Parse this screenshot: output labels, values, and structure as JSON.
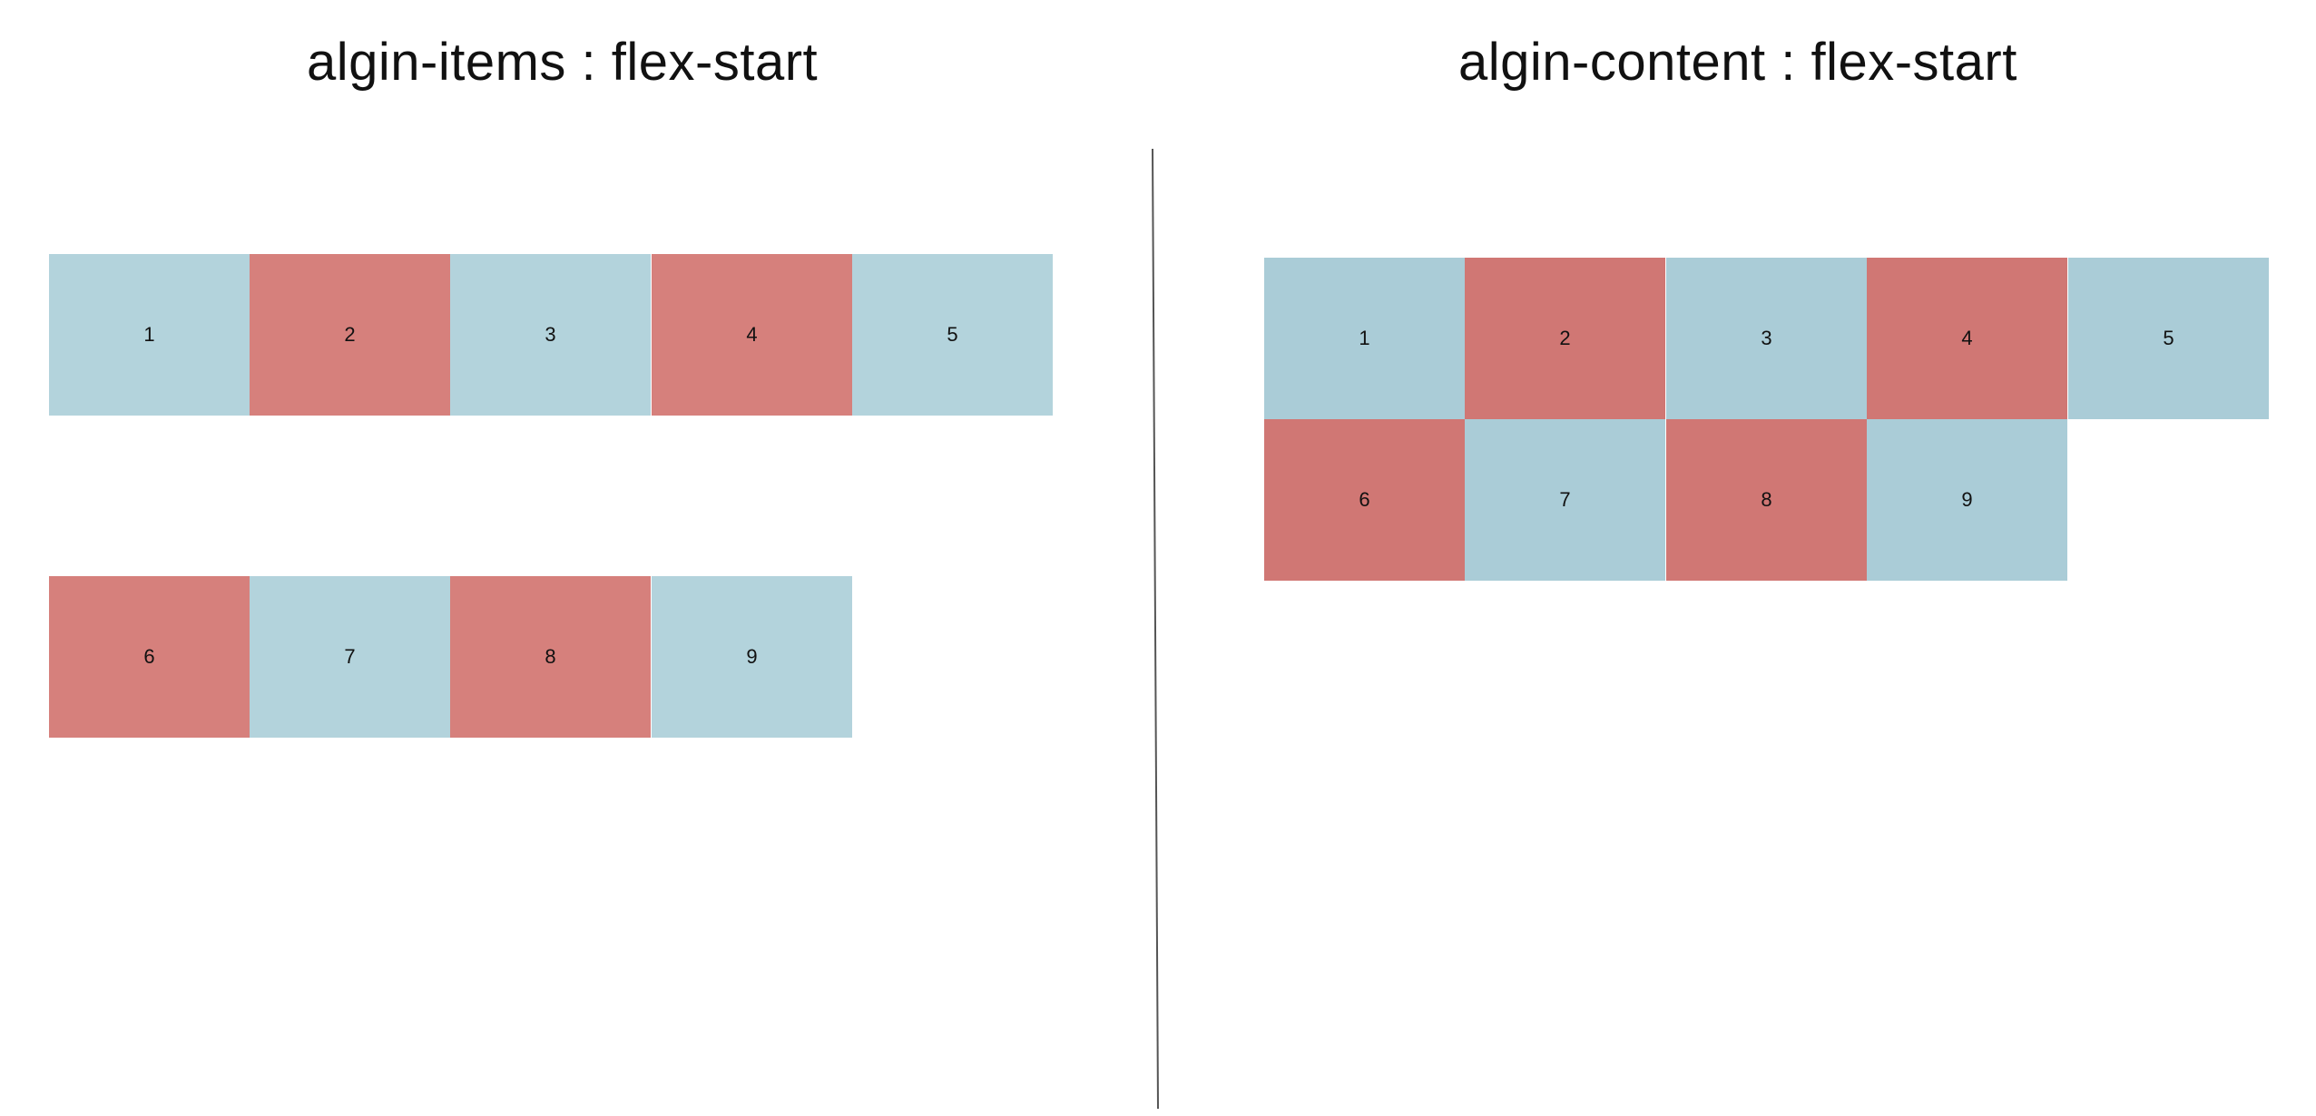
{
  "left_panel": {
    "title": "algin-items : flex-start",
    "row1": [
      "1",
      "2",
      "3",
      "4",
      "5"
    ],
    "row2": [
      "6",
      "7",
      "8",
      "9"
    ]
  },
  "right_panel": {
    "title": "algin-content : flex-start",
    "row1": [
      "1",
      "2",
      "3",
      "4",
      "5"
    ],
    "row2": [
      "6",
      "7",
      "8",
      "9"
    ]
  },
  "colors": {
    "blue": "#b3d3dc",
    "red": "#d6807c",
    "divider": "#555555"
  }
}
